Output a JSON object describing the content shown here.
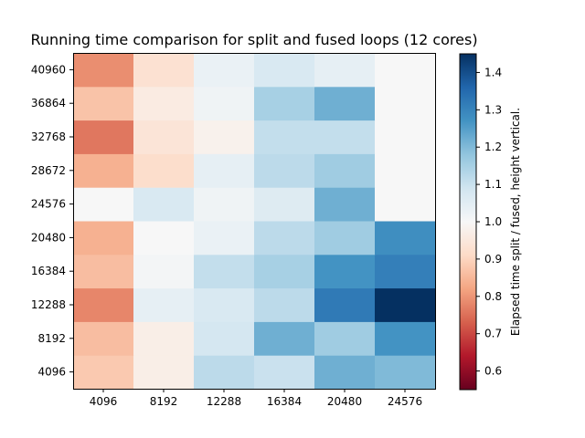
{
  "chart_data": {
    "type": "heatmap",
    "title": "Running time comparison for split and fused loops (12 cores)",
    "x_categories": [
      "4096",
      "8192",
      "12288",
      "16384",
      "20480",
      "24576"
    ],
    "y_categories": [
      "4096",
      "8192",
      "12288",
      "16384",
      "20480",
      "24576",
      "28672",
      "32768",
      "36864",
      "40960"
    ],
    "values": [
      [
        0.88,
        0.97,
        1.12,
        1.1,
        1.22,
        1.2
      ],
      [
        0.86,
        0.97,
        1.08,
        1.22,
        1.16,
        1.27
      ],
      [
        0.78,
        1.04,
        1.07,
        1.12,
        1.32,
        1.45
      ],
      [
        0.86,
        1.01,
        1.11,
        1.15,
        1.27,
        1.31
      ],
      [
        0.84,
        1.0,
        1.03,
        1.12,
        1.16,
        1.28
      ],
      [
        1.0,
        1.07,
        1.02,
        1.06,
        1.22,
        1.0
      ],
      [
        0.84,
        0.92,
        1.04,
        1.12,
        1.16,
        1.0
      ],
      [
        0.76,
        0.94,
        0.98,
        1.11,
        1.11,
        1.0
      ],
      [
        0.87,
        0.96,
        1.02,
        1.15,
        1.22,
        1.0
      ],
      [
        0.79,
        0.93,
        1.03,
        1.07,
        1.04,
        1.0
      ]
    ],
    "colorbar": {
      "label": "Elapsed time split / fused, height vertical.",
      "range": [
        0.55,
        1.45
      ],
      "ticks": [
        "0.6",
        "0.7",
        "0.8",
        "0.9",
        "1.0",
        "1.1",
        "1.2",
        "1.3",
        "1.4"
      ],
      "colormap": "RdBu"
    }
  }
}
